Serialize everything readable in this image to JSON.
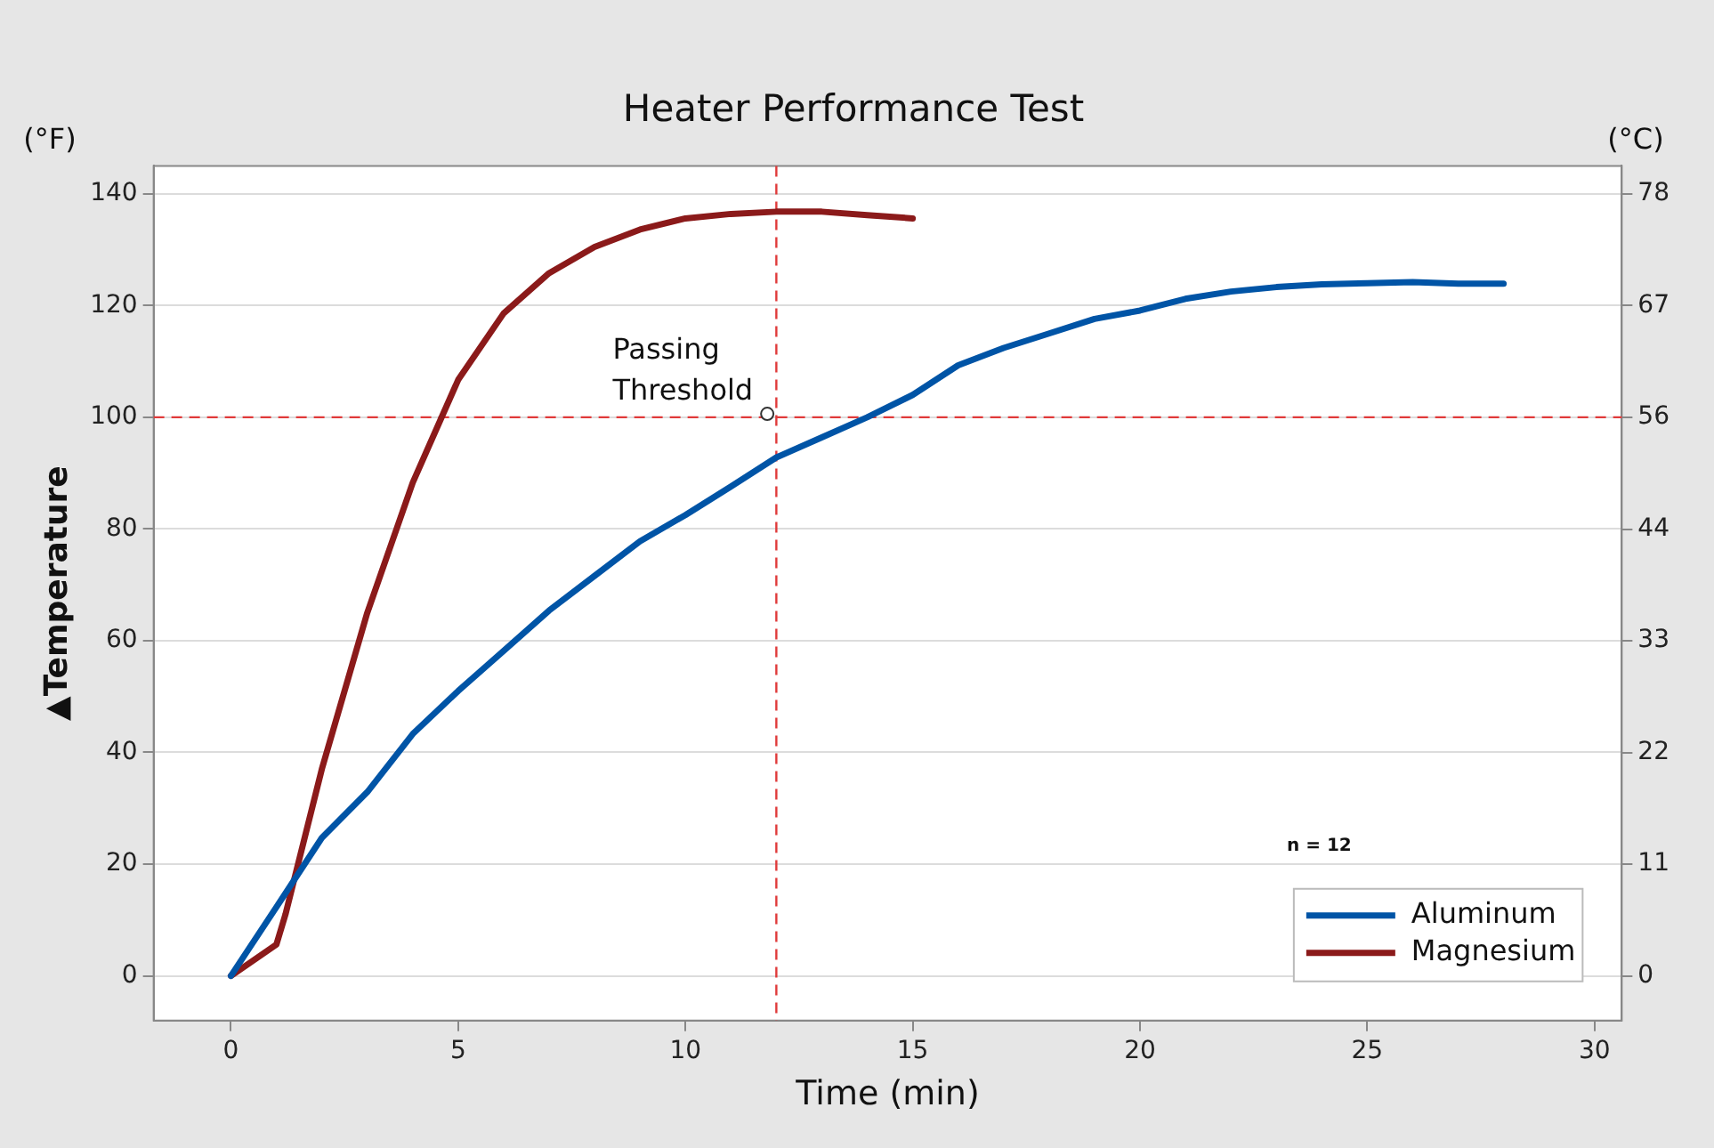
{
  "chart_data": {
    "type": "line",
    "title": "Heater Performance Test",
    "xlabel": "Time (min)",
    "ylabel": "▲Temperature",
    "x": [
      0,
      1,
      2,
      3,
      4,
      5,
      6,
      7,
      8,
      9,
      10,
      11,
      12,
      13,
      14,
      15,
      16,
      17,
      18,
      19,
      20,
      21,
      22,
      23,
      24,
      25,
      26,
      27,
      28
    ],
    "series": [
      {
        "name": "Aluminum",
        "color": "#0054a6",
        "values": [
          0,
          12.3,
          24.7,
          32.9,
          43.3,
          51,
          58.2,
          65.4,
          71.6,
          77.8,
          82.5,
          87.6,
          92.8,
          96.4,
          100,
          104,
          109.3,
          112.4,
          115,
          117.6,
          119.1,
          121.2,
          122.5,
          123.3,
          123.8,
          124,
          124.2,
          123.9,
          123.9
        ]
      },
      {
        "name": "Magnesium",
        "color": "#8b1a1a",
        "x": [
          0,
          1,
          1.2,
          2,
          3,
          4,
          5,
          6,
          7,
          8,
          9,
          10,
          11,
          12,
          13,
          14,
          15
        ],
        "values": [
          0,
          5.6,
          11,
          37,
          65,
          88.3,
          106.7,
          118.6,
          125.8,
          130.5,
          133.6,
          135.6,
          136.4,
          136.8,
          136.8,
          136.2,
          135.6
        ]
      },
      {
        "type": "scatter",
        "color": "#333333",
        "marker": "circle",
        "x": [
          11.8
        ],
        "values": [
          100.6
        ]
      }
    ],
    "xlim": [
      -1.7,
      30.6
    ],
    "xticks": [
      0,
      5,
      10,
      15,
      20,
      25,
      30
    ],
    "ylim": [
      -8,
      145
    ],
    "yticks": [
      0,
      20,
      40,
      60,
      80,
      100,
      120,
      140
    ],
    "y2lim": [
      -4.44,
      80.56
    ],
    "y2ticks": [
      {
        "value": 0,
        "label": "0"
      },
      {
        "value": 11.11,
        "label": "11"
      },
      {
        "value": 22.22,
        "label": "22"
      },
      {
        "value": 33.33,
        "label": "33"
      },
      {
        "value": 44.44,
        "label": "44"
      },
      {
        "value": 55.56,
        "label": "56"
      },
      {
        "value": 66.67,
        "label": "67"
      },
      {
        "value": 77.78,
        "label": "78"
      }
    ],
    "ref_lines": [
      {
        "axis": "y",
        "value": 100,
        "color": "#e03a3a",
        "line_style": "dashed"
      },
      {
        "axis": "x",
        "value": 12,
        "color": "#e03a3a",
        "line_style": "dashed"
      }
    ],
    "annotations": [
      "(°F)",
      "(°C)",
      "n = 12",
      {
        "text": "Passing Threshold",
        "x": 11.8,
        "y": 100
      }
    ],
    "grid": "y",
    "legend": "bottom right",
    "marker": "none",
    "line_style": "solid"
  }
}
